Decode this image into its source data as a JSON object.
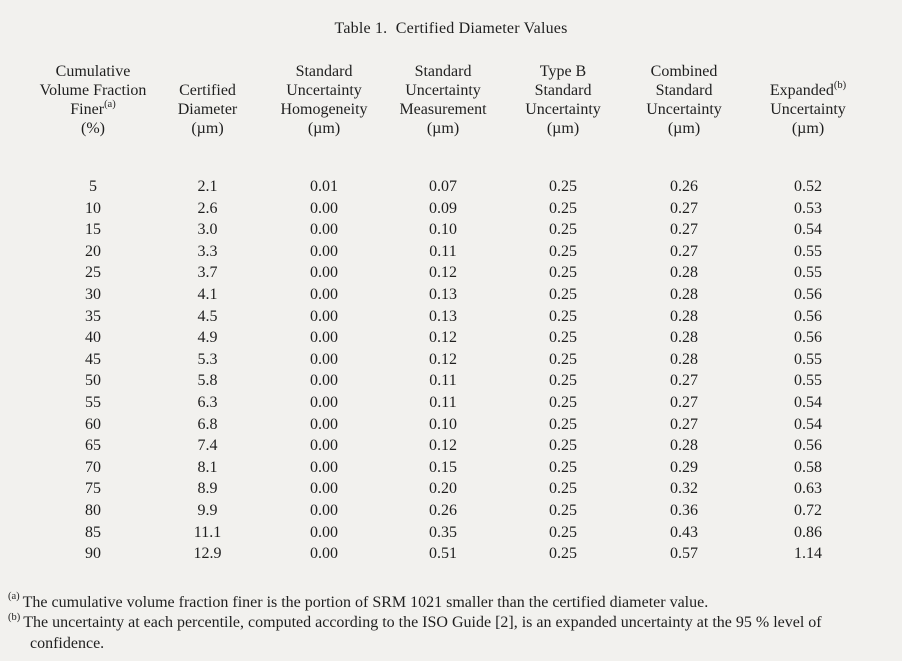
{
  "title": "Table 1.  Certified Diameter Values",
  "table": {
    "headers": [
      {
        "id": "cumulative-volume-fraction-finer",
        "lines": [
          "Cumulative",
          "Volume Fraction",
          "Finer^(a)",
          "(µm_PERCENT)"
        ]
      },
      {
        "id": "certified-diameter",
        "lines": [
          "Certified",
          "Diameter",
          "(µm)"
        ]
      },
      {
        "id": "standard-uncertainty-homogeneity",
        "lines": [
          "Standard",
          "Uncertainty",
          "Homogeneity",
          "(µm)"
        ]
      },
      {
        "id": "standard-uncertainty-measurement",
        "lines": [
          "Standard",
          "Uncertainty",
          "Measurement",
          "(µm)"
        ]
      },
      {
        "id": "type-b-standard-uncertainty",
        "lines": [
          "Type B",
          "Standard",
          "Uncertainty",
          "(µm)"
        ]
      },
      {
        "id": "combined-standard-uncertainty",
        "lines": [
          "Combined",
          "Standard",
          "Uncertainty",
          "(µm)"
        ]
      },
      {
        "id": "expanded-uncertainty",
        "lines": [
          "Expanded^(b)",
          "Uncertainty",
          "(µm)"
        ]
      }
    ],
    "header_units_fix": {
      "(µm_PERCENT)": "(%)"
    },
    "rows": [
      [
        "5",
        "2.1",
        "0.01",
        "0.07",
        "0.25",
        "0.26",
        "0.52"
      ],
      [
        "10",
        "2.6",
        "0.00",
        "0.09",
        "0.25",
        "0.27",
        "0.53"
      ],
      [
        "15",
        "3.0",
        "0.00",
        "0.10",
        "0.25",
        "0.27",
        "0.54"
      ],
      [
        "20",
        "3.3",
        "0.00",
        "0.11",
        "0.25",
        "0.27",
        "0.55"
      ],
      [
        "25",
        "3.7",
        "0.00",
        "0.12",
        "0.25",
        "0.28",
        "0.55"
      ],
      [
        "30",
        "4.1",
        "0.00",
        "0.13",
        "0.25",
        "0.28",
        "0.56"
      ],
      [
        "35",
        "4.5",
        "0.00",
        "0.13",
        "0.25",
        "0.28",
        "0.56"
      ],
      [
        "40",
        "4.9",
        "0.00",
        "0.12",
        "0.25",
        "0.28",
        "0.56"
      ],
      [
        "45",
        "5.3",
        "0.00",
        "0.12",
        "0.25",
        "0.28",
        "0.55"
      ],
      [
        "50",
        "5.8",
        "0.00",
        "0.11",
        "0.25",
        "0.27",
        "0.55"
      ],
      [
        "55",
        "6.3",
        "0.00",
        "0.11",
        "0.25",
        "0.27",
        "0.54"
      ],
      [
        "60",
        "6.8",
        "0.00",
        "0.10",
        "0.25",
        "0.27",
        "0.54"
      ],
      [
        "65",
        "7.4",
        "0.00",
        "0.12",
        "0.25",
        "0.28",
        "0.56"
      ],
      [
        "70",
        "8.1",
        "0.00",
        "0.15",
        "0.25",
        "0.29",
        "0.58"
      ],
      [
        "75",
        "8.9",
        "0.00",
        "0.20",
        "0.25",
        "0.32",
        "0.63"
      ],
      [
        "80",
        "9.9",
        "0.00",
        "0.26",
        "0.25",
        "0.36",
        "0.72"
      ],
      [
        "85",
        "11.1",
        "0.00",
        "0.35",
        "0.25",
        "0.43",
        "0.86"
      ],
      [
        "90",
        "12.9",
        "0.00",
        "0.51",
        "0.25",
        "0.57",
        "1.14"
      ]
    ]
  },
  "footnotes": [
    {
      "marker": "(a)",
      "text": "The cumulative volume fraction finer is the portion of SRM 1021 smaller than the certified diameter value."
    },
    {
      "marker": "(b)",
      "text": "The uncertainty at each percentile, computed according to the ISO Guide [2], is an expanded uncertainty at the 95 % level of confidence."
    }
  ]
}
